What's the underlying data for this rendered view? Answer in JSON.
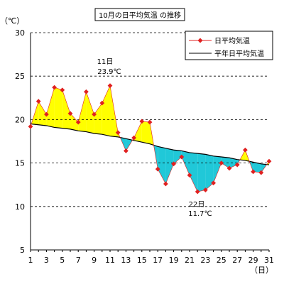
{
  "chart_data": {
    "type": "line",
    "title": "10月の日平均気温 の推移",
    "ylabel": "（℃）",
    "xlabel": "（日）",
    "ylim": [
      5,
      30
    ],
    "yticks": [
      5,
      10,
      15,
      20,
      25,
      30
    ],
    "xlim": [
      1,
      31
    ],
    "xticks": [
      1,
      3,
      5,
      7,
      9,
      11,
      13,
      15,
      17,
      19,
      21,
      23,
      25,
      27,
      29,
      31
    ],
    "grid": "horizontal dashed",
    "legend_position": "top-right",
    "x": [
      1,
      2,
      3,
      4,
      5,
      6,
      7,
      8,
      9,
      10,
      11,
      12,
      13,
      14,
      15,
      16,
      17,
      18,
      19,
      20,
      21,
      22,
      23,
      24,
      25,
      26,
      27,
      28,
      29,
      30,
      31
    ],
    "series": [
      {
        "name": "日平均気温",
        "color": "#e02020",
        "marker": "diamond",
        "values": [
          19.2,
          22.1,
          20.6,
          23.7,
          23.4,
          20.7,
          19.7,
          23.2,
          20.6,
          21.9,
          23.9,
          18.5,
          16.4,
          17.9,
          19.8,
          19.7,
          14.3,
          12.6,
          14.9,
          15.7,
          13.6,
          11.7,
          11.9,
          12.7,
          15.0,
          14.4,
          14.8,
          16.5,
          14.0,
          13.9,
          15.2
        ]
      },
      {
        "name": "平年日平均気温",
        "color": "#000000",
        "values": [
          19.5,
          19.4,
          19.3,
          19.1,
          19.0,
          18.9,
          18.7,
          18.6,
          18.4,
          18.3,
          18.1,
          18.0,
          17.8,
          17.6,
          17.4,
          17.2,
          16.9,
          16.7,
          16.5,
          16.4,
          16.2,
          16.1,
          16.0,
          15.8,
          15.7,
          15.6,
          15.4,
          15.3,
          15.1,
          14.9,
          14.8
        ]
      }
    ],
    "fill_above_color": "#ffff00",
    "fill_below_color": "#20c8d8",
    "annotations": [
      {
        "day": "11日",
        "value": "23.9℃"
      },
      {
        "day": "22日",
        "value": "11.7℃"
      }
    ]
  }
}
